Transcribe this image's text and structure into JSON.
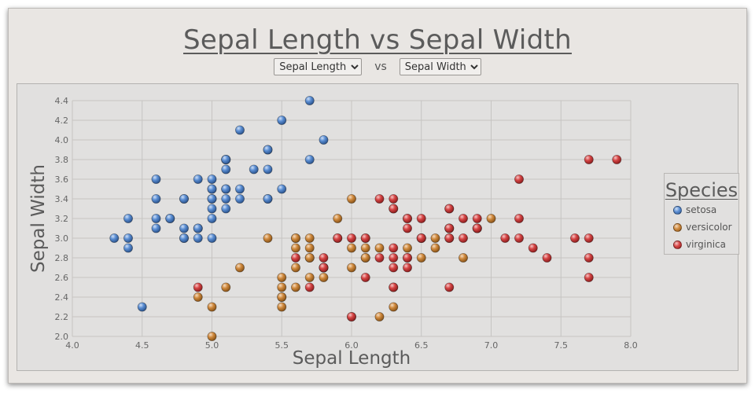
{
  "header": {
    "title": "Sepal Length vs Sepal Width",
    "x_select": {
      "selected": "Sepal Length"
    },
    "vs_label": "vs",
    "y_select": {
      "selected": "Sepal Width"
    }
  },
  "legend": {
    "title": "Species",
    "items": [
      {
        "label": "setosa",
        "color": "#4e7fc4"
      },
      {
        "label": "versicolor",
        "color": "#d08a3e"
      },
      {
        "label": "virginica",
        "color": "#d64545"
      }
    ]
  },
  "chart_data": {
    "type": "scatter",
    "title": "Sepal Length vs Sepal Width",
    "xlabel": "Sepal Length",
    "ylabel": "Sepal Width",
    "xlim": [
      4.0,
      8.0
    ],
    "ylim": [
      2.0,
      4.4
    ],
    "x_ticks": [
      "4.0",
      "4.5",
      "5.0",
      "5.5",
      "6.0",
      "6.5",
      "7.0",
      "7.5",
      "8.0"
    ],
    "y_ticks": [
      "2.0",
      "2.2",
      "2.4",
      "2.6",
      "2.8",
      "3.0",
      "3.2",
      "3.4",
      "3.6",
      "3.8",
      "4.0",
      "4.2",
      "4.4"
    ],
    "grid": true,
    "legend_position": "right",
    "series": [
      {
        "name": "setosa",
        "color": "#4e7fc4",
        "points": [
          [
            5.1,
            3.5
          ],
          [
            4.9,
            3.0
          ],
          [
            4.7,
            3.2
          ],
          [
            4.6,
            3.1
          ],
          [
            5.0,
            3.6
          ],
          [
            5.4,
            3.9
          ],
          [
            4.6,
            3.4
          ],
          [
            5.0,
            3.4
          ],
          [
            4.4,
            2.9
          ],
          [
            4.9,
            3.1
          ],
          [
            5.4,
            3.7
          ],
          [
            4.8,
            3.4
          ],
          [
            4.8,
            3.0
          ],
          [
            4.3,
            3.0
          ],
          [
            5.8,
            4.0
          ],
          [
            5.7,
            4.4
          ],
          [
            5.4,
            3.9
          ],
          [
            5.1,
            3.5
          ],
          [
            5.7,
            3.8
          ],
          [
            5.1,
            3.8
          ],
          [
            5.4,
            3.4
          ],
          [
            5.1,
            3.7
          ],
          [
            4.6,
            3.6
          ],
          [
            5.1,
            3.3
          ],
          [
            4.8,
            3.4
          ],
          [
            5.0,
            3.0
          ],
          [
            5.0,
            3.4
          ],
          [
            5.2,
            3.5
          ],
          [
            5.2,
            3.4
          ],
          [
            4.7,
            3.2
          ],
          [
            4.8,
            3.1
          ],
          [
            5.4,
            3.4
          ],
          [
            5.2,
            4.1
          ],
          [
            5.5,
            4.2
          ],
          [
            4.9,
            3.1
          ],
          [
            5.0,
            3.2
          ],
          [
            5.5,
            3.5
          ],
          [
            4.9,
            3.6
          ],
          [
            4.4,
            3.0
          ],
          [
            5.1,
            3.4
          ],
          [
            5.0,
            3.5
          ],
          [
            4.5,
            2.3
          ],
          [
            4.4,
            3.2
          ],
          [
            5.0,
            3.5
          ],
          [
            5.1,
            3.8
          ],
          [
            4.8,
            3.0
          ],
          [
            5.1,
            3.8
          ],
          [
            4.6,
            3.2
          ],
          [
            5.3,
            3.7
          ],
          [
            5.0,
            3.3
          ]
        ]
      },
      {
        "name": "versicolor",
        "color": "#d08a3e",
        "points": [
          [
            7.0,
            3.2
          ],
          [
            6.4,
            3.2
          ],
          [
            6.9,
            3.1
          ],
          [
            5.5,
            2.3
          ],
          [
            6.5,
            2.8
          ],
          [
            5.7,
            2.8
          ],
          [
            6.3,
            3.3
          ],
          [
            4.9,
            2.4
          ],
          [
            6.6,
            2.9
          ],
          [
            5.2,
            2.7
          ],
          [
            5.0,
            2.0
          ],
          [
            5.9,
            3.0
          ],
          [
            6.0,
            2.2
          ],
          [
            6.1,
            2.9
          ],
          [
            5.6,
            2.9
          ],
          [
            6.7,
            3.1
          ],
          [
            5.6,
            3.0
          ],
          [
            5.8,
            2.7
          ],
          [
            6.2,
            2.2
          ],
          [
            5.6,
            2.5
          ],
          [
            5.9,
            3.2
          ],
          [
            6.1,
            2.8
          ],
          [
            6.3,
            2.5
          ],
          [
            6.1,
            2.8
          ],
          [
            6.4,
            2.9
          ],
          [
            6.6,
            3.0
          ],
          [
            6.8,
            2.8
          ],
          [
            6.7,
            3.0
          ],
          [
            6.0,
            2.9
          ],
          [
            5.7,
            2.6
          ],
          [
            5.5,
            2.4
          ],
          [
            5.5,
            2.4
          ],
          [
            5.8,
            2.7
          ],
          [
            6.0,
            2.7
          ],
          [
            5.4,
            3.0
          ],
          [
            6.0,
            3.4
          ],
          [
            6.7,
            3.1
          ],
          [
            6.3,
            2.3
          ],
          [
            5.6,
            3.0
          ],
          [
            5.5,
            2.5
          ],
          [
            5.5,
            2.6
          ],
          [
            6.1,
            3.0
          ],
          [
            5.8,
            2.6
          ],
          [
            5.0,
            2.3
          ],
          [
            5.6,
            2.7
          ],
          [
            5.7,
            3.0
          ],
          [
            5.7,
            2.9
          ],
          [
            6.2,
            2.9
          ],
          [
            5.1,
            2.5
          ],
          [
            5.7,
            2.8
          ]
        ]
      },
      {
        "name": "virginica",
        "color": "#d64545",
        "points": [
          [
            6.3,
            3.3
          ],
          [
            5.8,
            2.7
          ],
          [
            7.1,
            3.0
          ],
          [
            6.3,
            2.9
          ],
          [
            6.5,
            3.0
          ],
          [
            7.6,
            3.0
          ],
          [
            4.9,
            2.5
          ],
          [
            7.3,
            2.9
          ],
          [
            6.7,
            2.5
          ],
          [
            7.2,
            3.6
          ],
          [
            6.5,
            3.2
          ],
          [
            6.4,
            2.7
          ],
          [
            6.8,
            3.0
          ],
          [
            5.7,
            2.5
          ],
          [
            5.8,
            2.8
          ],
          [
            6.4,
            3.2
          ],
          [
            6.5,
            3.0
          ],
          [
            7.7,
            3.8
          ],
          [
            7.7,
            2.6
          ],
          [
            6.0,
            2.2
          ],
          [
            6.9,
            3.2
          ],
          [
            5.6,
            2.8
          ],
          [
            7.7,
            2.8
          ],
          [
            6.3,
            2.7
          ],
          [
            6.7,
            3.3
          ],
          [
            7.2,
            3.2
          ],
          [
            6.2,
            2.8
          ],
          [
            6.1,
            3.0
          ],
          [
            6.4,
            2.8
          ],
          [
            7.2,
            3.0
          ],
          [
            7.4,
            2.8
          ],
          [
            7.9,
            3.8
          ],
          [
            6.4,
            2.8
          ],
          [
            6.3,
            2.8
          ],
          [
            6.1,
            2.6
          ],
          [
            7.7,
            3.0
          ],
          [
            6.3,
            3.4
          ],
          [
            6.4,
            3.1
          ],
          [
            6.0,
            3.0
          ],
          [
            6.9,
            3.1
          ],
          [
            6.7,
            3.1
          ],
          [
            6.9,
            3.1
          ],
          [
            5.8,
            2.7
          ],
          [
            6.8,
            3.2
          ],
          [
            6.7,
            3.3
          ],
          [
            6.7,
            3.0
          ],
          [
            6.3,
            2.5
          ],
          [
            6.5,
            3.0
          ],
          [
            6.2,
            3.4
          ],
          [
            5.9,
            3.0
          ]
        ]
      }
    ]
  }
}
